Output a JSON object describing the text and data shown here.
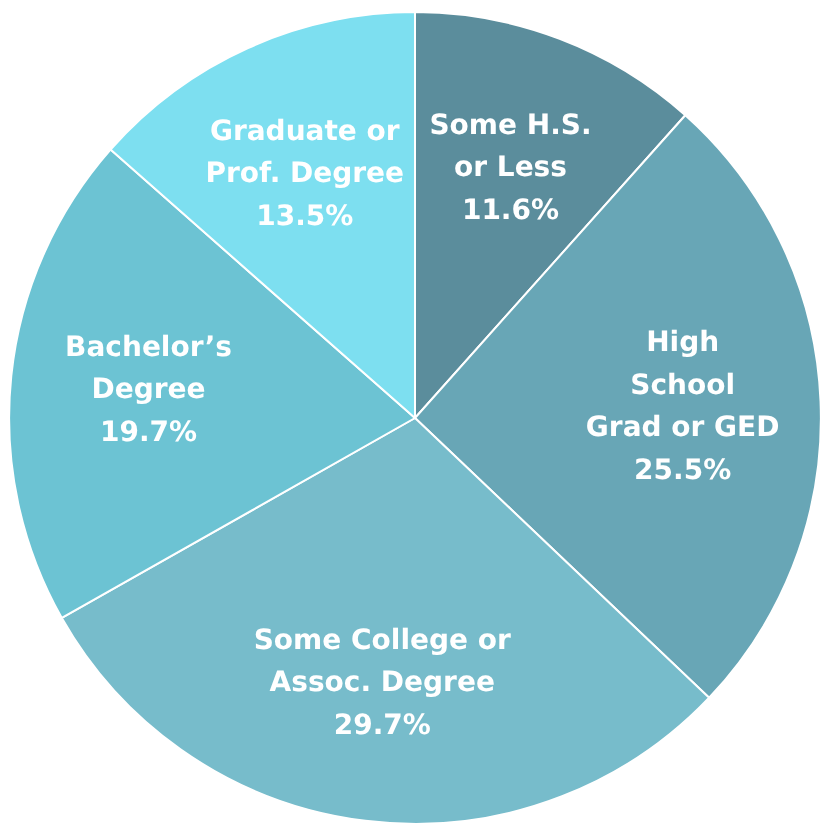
{
  "chart_data": {
    "type": "pie",
    "categories": [
      "Some H.S.\nor Less",
      "High\nSchool\nGrad or GED",
      "Some College or\nAssoc. Degree",
      "Bachelor’s\nDegree",
      "Graduate or\nProf. Degree"
    ],
    "values": [
      11.6,
      25.5,
      29.7,
      19.7,
      13.5
    ],
    "value_labels": [
      "11.6%",
      "25.5%",
      "29.7%",
      "19.7%",
      "13.5%"
    ],
    "colors": [
      "#5b8d9c",
      "#68a6b6",
      "#77bccb",
      "#6cc3d3",
      "#7ddff0"
    ]
  }
}
